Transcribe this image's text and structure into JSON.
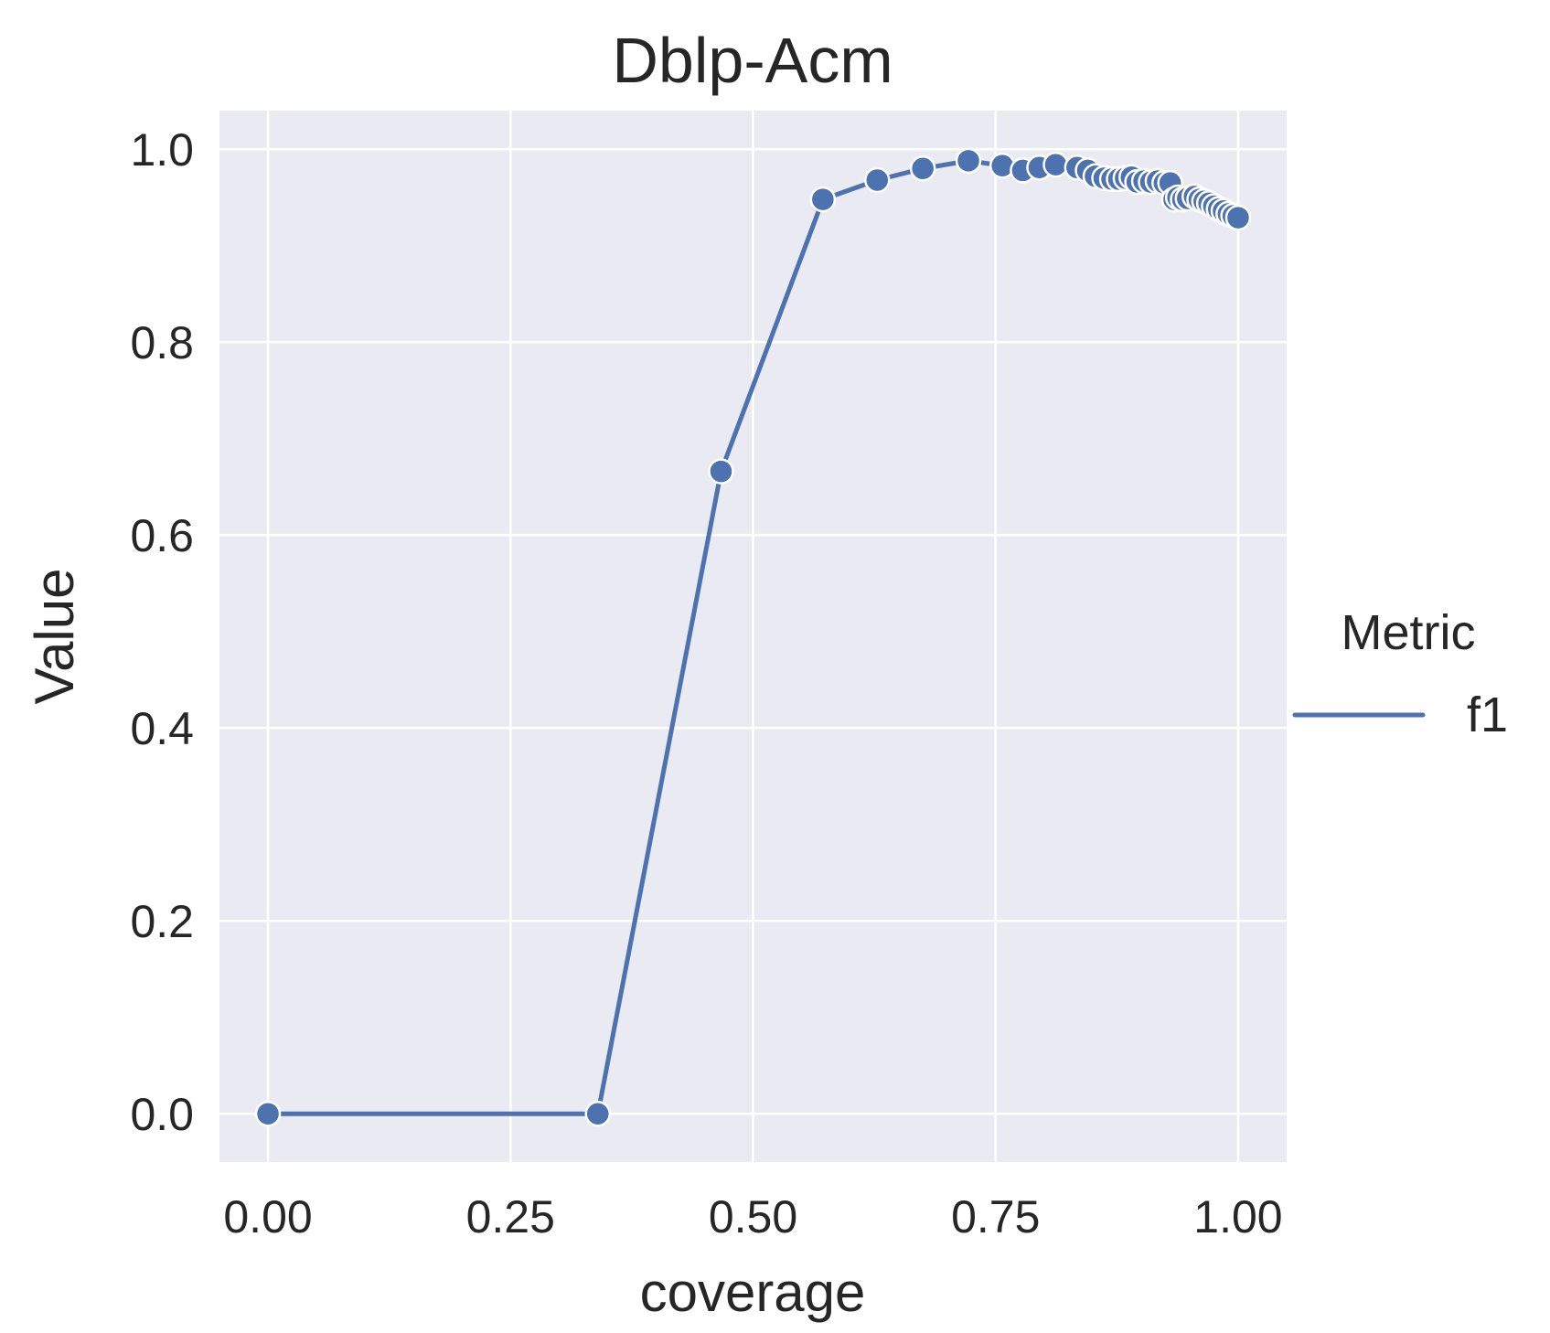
{
  "chart_data": {
    "type": "line",
    "title": "Dblp-Acm",
    "xlabel": "coverage",
    "ylabel": "Value",
    "xlim": [
      -0.05,
      1.05
    ],
    "ylim": [
      -0.05,
      1.04
    ],
    "xticks": [
      0.0,
      0.25,
      0.5,
      0.75,
      1.0
    ],
    "xtick_labels": [
      "0.00",
      "0.25",
      "0.50",
      "0.75",
      "1.00"
    ],
    "yticks": [
      0.0,
      0.2,
      0.4,
      0.6,
      0.8,
      1.0
    ],
    "ytick_labels": [
      "0.0",
      "0.2",
      "0.4",
      "0.6",
      "0.8",
      "1.0"
    ],
    "grid": true,
    "legend": {
      "title": "Metric",
      "placement": "center-right outside"
    },
    "colors": {
      "background": "#eaeaf2",
      "grid": "#ffffff",
      "series": "#4c72b0",
      "text": "#262626"
    },
    "series": [
      {
        "name": "f1",
        "marker": "circle",
        "points": [
          [
            0.0,
            0.0
          ],
          [
            0.34,
            0.0
          ],
          [
            0.467,
            0.666
          ],
          [
            0.572,
            0.948
          ],
          [
            0.628,
            0.968
          ],
          [
            0.675,
            0.98
          ],
          [
            0.722,
            0.988
          ],
          [
            0.757,
            0.983
          ],
          [
            0.778,
            0.978
          ],
          [
            0.795,
            0.981
          ],
          [
            0.812,
            0.984
          ],
          [
            0.834,
            0.981
          ],
          [
            0.845,
            0.978
          ],
          [
            0.853,
            0.972
          ],
          [
            0.862,
            0.97
          ],
          [
            0.87,
            0.969
          ],
          [
            0.877,
            0.969
          ],
          [
            0.884,
            0.97
          ],
          [
            0.89,
            0.971
          ],
          [
            0.896,
            0.966
          ],
          [
            0.903,
            0.967
          ],
          [
            0.91,
            0.966
          ],
          [
            0.917,
            0.967
          ],
          [
            0.924,
            0.965
          ],
          [
            0.93,
            0.965
          ],
          [
            0.934,
            0.948
          ],
          [
            0.938,
            0.95
          ],
          [
            0.943,
            0.948
          ],
          [
            0.948,
            0.949
          ],
          [
            0.955,
            0.951
          ],
          [
            0.96,
            0.948
          ],
          [
            0.965,
            0.946
          ],
          [
            0.97,
            0.944
          ],
          [
            0.975,
            0.941
          ],
          [
            0.98,
            0.938
          ],
          [
            0.985,
            0.936
          ],
          [
            0.99,
            0.933
          ],
          [
            0.995,
            0.931
          ],
          [
            1.0,
            0.929
          ]
        ]
      }
    ]
  }
}
